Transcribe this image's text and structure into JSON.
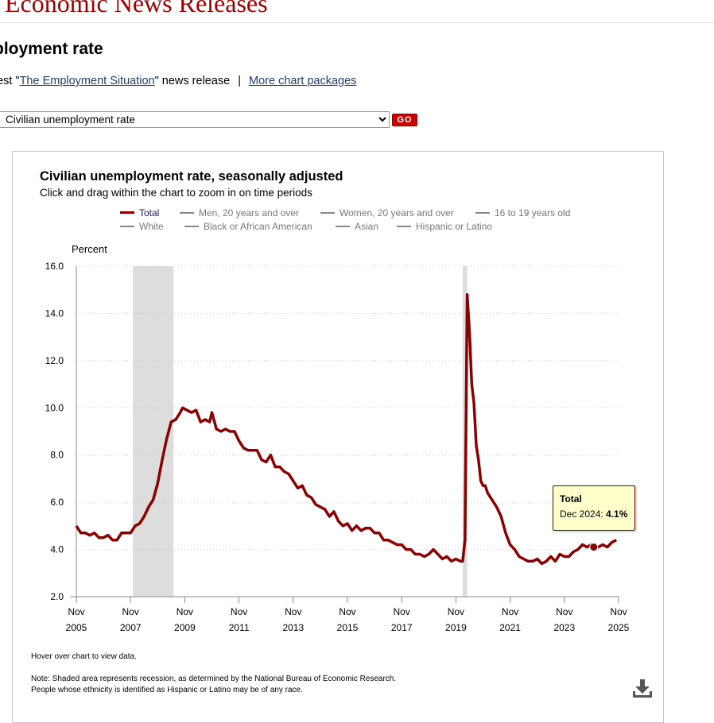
{
  "header": {
    "site_title": "Economic News Releases"
  },
  "page": {
    "title": "ployment rate",
    "links": {
      "prefix": "test \"",
      "release_link": "The Employment Situation",
      "suffix": "\" news release",
      "separator": "|",
      "packages_link": "More chart packages"
    },
    "select": {
      "value": "Civilian unemployment rate"
    },
    "go_label": "GO"
  },
  "tooltip": {
    "series": "Total",
    "date": "Dec 2024",
    "value": "4.1%"
  },
  "notes": {
    "hover": "Hover over chart to view data.",
    "line1": "Note: Shaded area represents recession, as determined by the National Bureau of Economic Research.",
    "line2": "People whose ethnicity is identified as Hispanic or Latino may be of any race."
  },
  "icons": {
    "download": "download-icon",
    "select_caret": "chevron-down-icon"
  },
  "colors": {
    "total_series": "#8b0000",
    "recession_shade": "#dddddd",
    "tooltip_bg": "#ffffcc",
    "brand": "#a00000",
    "go_button": "#cc0000"
  },
  "chart_data": {
    "type": "line",
    "title": "Civilian unemployment rate, seasonally adjusted",
    "subtitle": "Click and drag within the chart to zoom in on time periods",
    "ylabel": "Percent",
    "ylim": [
      2.0,
      16.0
    ],
    "yticks": [
      "2.0",
      "4.0",
      "6.0",
      "8.0",
      "10.0",
      "12.0",
      "14.0",
      "16.0"
    ],
    "xlim": [
      "2005-11",
      "2025-11"
    ],
    "xticks": [
      {
        "month": "Nov",
        "year": "2005"
      },
      {
        "month": "Nov",
        "year": "2007"
      },
      {
        "month": "Nov",
        "year": "2009"
      },
      {
        "month": "Nov",
        "year": "2011"
      },
      {
        "month": "Nov",
        "year": "2013"
      },
      {
        "month": "Nov",
        "year": "2015"
      },
      {
        "month": "Nov",
        "year": "2017"
      },
      {
        "month": "Nov",
        "year": "2019"
      },
      {
        "month": "Nov",
        "year": "2021"
      },
      {
        "month": "Nov",
        "year": "2023"
      },
      {
        "month": "Nov",
        "year": "2025"
      }
    ],
    "grid": "horizontal dotted",
    "legend_position": "top",
    "legend": [
      "Total",
      "Men, 20 years and over",
      "Women, 20 years and over",
      "16 to 19 years old",
      "White",
      "Black or African American",
      "Asian",
      "Hispanic or Latino"
    ],
    "recessions": [
      [
        "2007-12",
        "2009-06"
      ],
      [
        "2020-02",
        "2020-04"
      ]
    ],
    "series": [
      {
        "name": "Total",
        "points": [
          [
            "2005-11",
            5.0
          ],
          [
            "2006-01",
            4.7
          ],
          [
            "2006-03",
            4.7
          ],
          [
            "2006-05",
            4.6
          ],
          [
            "2006-07",
            4.7
          ],
          [
            "2006-09",
            4.5
          ],
          [
            "2006-11",
            4.5
          ],
          [
            "2007-01",
            4.6
          ],
          [
            "2007-03",
            4.4
          ],
          [
            "2007-05",
            4.4
          ],
          [
            "2007-07",
            4.7
          ],
          [
            "2007-09",
            4.7
          ],
          [
            "2007-11",
            4.7
          ],
          [
            "2008-01",
            5.0
          ],
          [
            "2008-03",
            5.1
          ],
          [
            "2008-05",
            5.4
          ],
          [
            "2008-07",
            5.8
          ],
          [
            "2008-09",
            6.1
          ],
          [
            "2008-11",
            6.8
          ],
          [
            "2009-01",
            7.8
          ],
          [
            "2009-03",
            8.7
          ],
          [
            "2009-05",
            9.4
          ],
          [
            "2009-07",
            9.5
          ],
          [
            "2009-09",
            9.8
          ],
          [
            "2009-10",
            10.0
          ],
          [
            "2009-12",
            9.9
          ],
          [
            "2010-02",
            9.8
          ],
          [
            "2010-04",
            9.9
          ],
          [
            "2010-06",
            9.4
          ],
          [
            "2010-08",
            9.5
          ],
          [
            "2010-10",
            9.4
          ],
          [
            "2010-11",
            9.8
          ],
          [
            "2011-01",
            9.1
          ],
          [
            "2011-03",
            9.0
          ],
          [
            "2011-05",
            9.1
          ],
          [
            "2011-07",
            9.0
          ],
          [
            "2011-09",
            9.0
          ],
          [
            "2011-11",
            8.6
          ],
          [
            "2012-01",
            8.3
          ],
          [
            "2012-03",
            8.2
          ],
          [
            "2012-05",
            8.2
          ],
          [
            "2012-07",
            8.2
          ],
          [
            "2012-09",
            7.8
          ],
          [
            "2012-11",
            7.7
          ],
          [
            "2013-01",
            8.0
          ],
          [
            "2013-03",
            7.5
          ],
          [
            "2013-05",
            7.5
          ],
          [
            "2013-07",
            7.3
          ],
          [
            "2013-09",
            7.2
          ],
          [
            "2013-11",
            6.9
          ],
          [
            "2014-01",
            6.6
          ],
          [
            "2014-03",
            6.7
          ],
          [
            "2014-05",
            6.3
          ],
          [
            "2014-07",
            6.2
          ],
          [
            "2014-09",
            5.9
          ],
          [
            "2014-11",
            5.8
          ],
          [
            "2015-01",
            5.7
          ],
          [
            "2015-03",
            5.4
          ],
          [
            "2015-05",
            5.6
          ],
          [
            "2015-07",
            5.2
          ],
          [
            "2015-09",
            5.0
          ],
          [
            "2015-11",
            5.1
          ],
          [
            "2016-01",
            4.8
          ],
          [
            "2016-03",
            5.0
          ],
          [
            "2016-05",
            4.8
          ],
          [
            "2016-07",
            4.9
          ],
          [
            "2016-09",
            4.9
          ],
          [
            "2016-11",
            4.7
          ],
          [
            "2017-01",
            4.7
          ],
          [
            "2017-03",
            4.4
          ],
          [
            "2017-05",
            4.4
          ],
          [
            "2017-07",
            4.3
          ],
          [
            "2017-09",
            4.2
          ],
          [
            "2017-11",
            4.2
          ],
          [
            "2018-01",
            4.0
          ],
          [
            "2018-03",
            4.0
          ],
          [
            "2018-05",
            3.8
          ],
          [
            "2018-07",
            3.8
          ],
          [
            "2018-09",
            3.7
          ],
          [
            "2018-11",
            3.8
          ],
          [
            "2019-01",
            4.0
          ],
          [
            "2019-03",
            3.8
          ],
          [
            "2019-05",
            3.6
          ],
          [
            "2019-07",
            3.7
          ],
          [
            "2019-09",
            3.5
          ],
          [
            "2019-11",
            3.6
          ],
          [
            "2020-01",
            3.5
          ],
          [
            "2020-02",
            3.5
          ],
          [
            "2020-03",
            4.4
          ],
          [
            "2020-04",
            14.8
          ],
          [
            "2020-05",
            13.2
          ],
          [
            "2020-06",
            11.0
          ],
          [
            "2020-07",
            10.2
          ],
          [
            "2020-08",
            8.4
          ],
          [
            "2020-09",
            7.8
          ],
          [
            "2020-10",
            6.9
          ],
          [
            "2020-11",
            6.7
          ],
          [
            "2020-12",
            6.7
          ],
          [
            "2021-01",
            6.4
          ],
          [
            "2021-03",
            6.1
          ],
          [
            "2021-05",
            5.8
          ],
          [
            "2021-07",
            5.4
          ],
          [
            "2021-09",
            4.7
          ],
          [
            "2021-11",
            4.2
          ],
          [
            "2022-01",
            4.0
          ],
          [
            "2022-03",
            3.7
          ],
          [
            "2022-05",
            3.6
          ],
          [
            "2022-07",
            3.5
          ],
          [
            "2022-09",
            3.5
          ],
          [
            "2022-11",
            3.6
          ],
          [
            "2023-01",
            3.4
          ],
          [
            "2023-03",
            3.5
          ],
          [
            "2023-05",
            3.7
          ],
          [
            "2023-07",
            3.5
          ],
          [
            "2023-09",
            3.8
          ],
          [
            "2023-11",
            3.7
          ],
          [
            "2024-01",
            3.7
          ],
          [
            "2024-03",
            3.9
          ],
          [
            "2024-05",
            4.0
          ],
          [
            "2024-07",
            4.2
          ],
          [
            "2024-09",
            4.1
          ],
          [
            "2024-11",
            4.2
          ],
          [
            "2024-12",
            4.1
          ],
          [
            "2025-02",
            4.1
          ],
          [
            "2025-04",
            4.2
          ],
          [
            "2025-06",
            4.1
          ],
          [
            "2025-08",
            4.3
          ],
          [
            "2025-10",
            4.4
          ]
        ]
      }
    ],
    "highlight": {
      "series": "Total",
      "point": [
        "2024-12",
        4.1
      ]
    }
  }
}
